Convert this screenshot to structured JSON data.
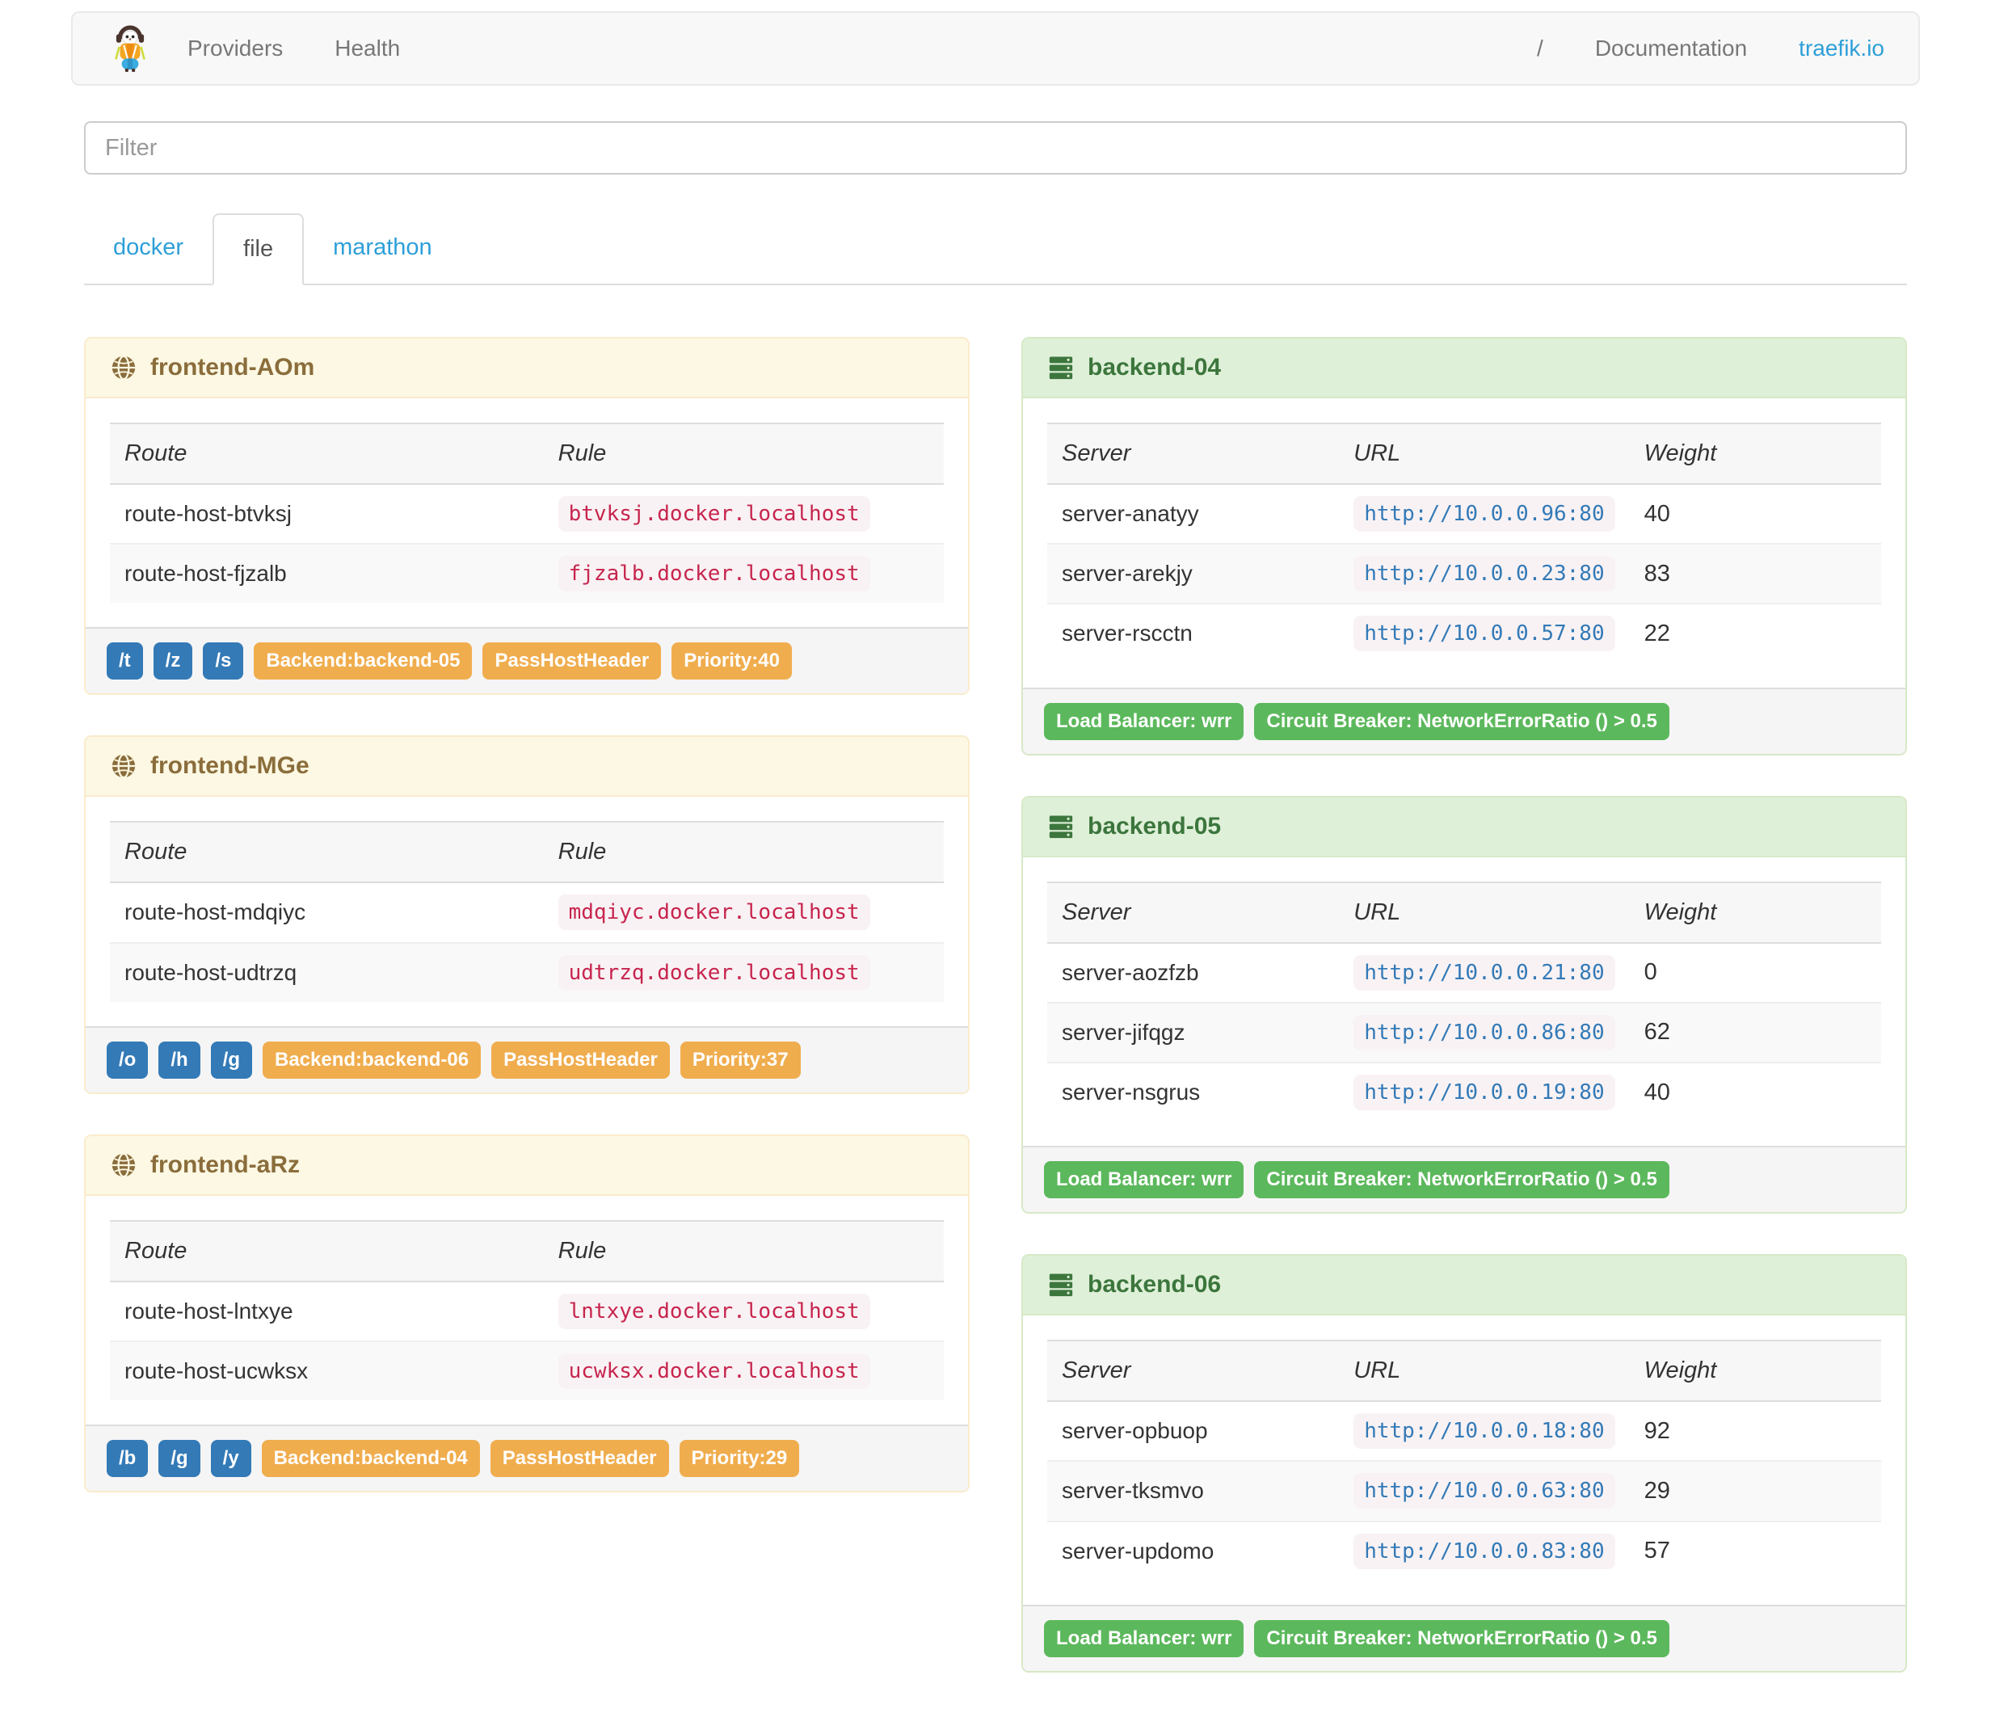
{
  "navbar": {
    "logo_icon": "traefik-gopher-logo",
    "providers_label": "Providers",
    "health_label": "Health",
    "separator": "/",
    "documentation_label": "Documentation",
    "site_link_label": "traefik.io"
  },
  "filter": {
    "placeholder": "Filter"
  },
  "tabs": {
    "items": [
      {
        "label": "docker",
        "active": false
      },
      {
        "label": "file",
        "active": true
      },
      {
        "label": "marathon",
        "active": false
      }
    ]
  },
  "frontends": [
    {
      "title": "frontend-AOm",
      "icon": "globe-icon",
      "columns": [
        "Route",
        "Rule"
      ],
      "routes": [
        {
          "route": "route-host-btvksj",
          "rule": "btvksj.docker.localhost"
        },
        {
          "route": "route-host-fjzalb",
          "rule": "fjzalb.docker.localhost"
        }
      ],
      "entrypoint_tags": [
        "/t",
        "/z",
        "/s"
      ],
      "tags": [
        "Backend:backend-05",
        "PassHostHeader",
        "Priority:40"
      ]
    },
    {
      "title": "frontend-MGe",
      "icon": "globe-icon",
      "columns": [
        "Route",
        "Rule"
      ],
      "routes": [
        {
          "route": "route-host-mdqiyc",
          "rule": "mdqiyc.docker.localhost"
        },
        {
          "route": "route-host-udtrzq",
          "rule": "udtrzq.docker.localhost"
        }
      ],
      "entrypoint_tags": [
        "/o",
        "/h",
        "/g"
      ],
      "tags": [
        "Backend:backend-06",
        "PassHostHeader",
        "Priority:37"
      ]
    },
    {
      "title": "frontend-aRz",
      "icon": "globe-icon",
      "columns": [
        "Route",
        "Rule"
      ],
      "routes": [
        {
          "route": "route-host-lntxye",
          "rule": "lntxye.docker.localhost"
        },
        {
          "route": "route-host-ucwksx",
          "rule": "ucwksx.docker.localhost"
        }
      ],
      "entrypoint_tags": [
        "/b",
        "/g",
        "/y"
      ],
      "tags": [
        "Backend:backend-04",
        "PassHostHeader",
        "Priority:29"
      ]
    }
  ],
  "backends": [
    {
      "title": "backend-04",
      "icon": "server-stack-icon",
      "columns": [
        "Server",
        "URL",
        "Weight"
      ],
      "servers": [
        {
          "server": "server-anatyy",
          "url": "http://10.0.0.96:80",
          "weight": "40"
        },
        {
          "server": "server-arekjy",
          "url": "http://10.0.0.23:80",
          "weight": "83"
        },
        {
          "server": "server-rscctn",
          "url": "http://10.0.0.57:80",
          "weight": "22"
        }
      ],
      "tags": [
        "Load Balancer: wrr",
        "Circuit Breaker: NetworkErrorRatio () > 0.5"
      ]
    },
    {
      "title": "backend-05",
      "icon": "server-stack-icon",
      "columns": [
        "Server",
        "URL",
        "Weight"
      ],
      "servers": [
        {
          "server": "server-aozfzb",
          "url": "http://10.0.0.21:80",
          "weight": "0"
        },
        {
          "server": "server-jifqgz",
          "url": "http://10.0.0.86:80",
          "weight": "62"
        },
        {
          "server": "server-nsgrus",
          "url": "http://10.0.0.19:80",
          "weight": "40"
        }
      ],
      "tags": [
        "Load Balancer: wrr",
        "Circuit Breaker: NetworkErrorRatio () > 0.5"
      ]
    },
    {
      "title": "backend-06",
      "icon": "server-stack-icon",
      "columns": [
        "Server",
        "URL",
        "Weight"
      ],
      "servers": [
        {
          "server": "server-opbuop",
          "url": "http://10.0.0.18:80",
          "weight": "92"
        },
        {
          "server": "server-tksmvo",
          "url": "http://10.0.0.63:80",
          "weight": "29"
        },
        {
          "server": "server-updomo",
          "url": "http://10.0.0.83:80",
          "weight": "57"
        }
      ],
      "tags": [
        "Load Balancer: wrr",
        "Circuit Breaker: NetworkErrorRatio () > 0.5"
      ]
    }
  ],
  "colors": {
    "link_blue": "#2e9fd8",
    "frontend_title": "#8a6d3b",
    "frontend_header_bg": "#fcf8e3",
    "frontend_border": "#faebcc",
    "backend_title": "#3c763d",
    "backend_header_bg": "#dff0d8",
    "backend_border": "#d6e9c6",
    "tag_blue": "#337ab7",
    "tag_orange": "#f0ad4e",
    "tag_green": "#5cb85c",
    "rule_code_text": "#c7254e",
    "code_bg": "#f9f2f4",
    "url_code_text": "#337ab7"
  }
}
